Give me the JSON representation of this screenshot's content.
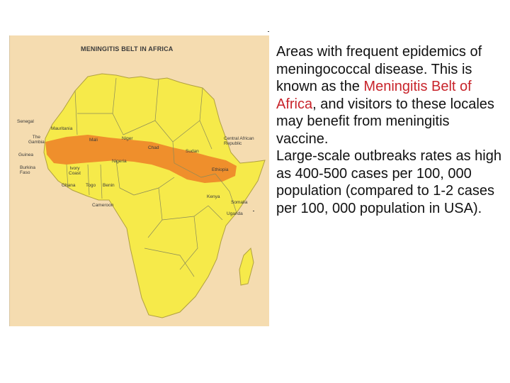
{
  "map": {
    "title": "MENINGITIS BELT IN AFRICA",
    "labels": {
      "senegal": "Senegal",
      "the_gambia": "The\nGambia",
      "guinea": "Guinea",
      "burkina_faso": "Burkina\nFaso",
      "mauritania": "Mauritania",
      "mali": "Mali",
      "niger": "Niger",
      "chad": "Chad",
      "sudan": "Sudan",
      "nigeria": "Nigeria",
      "ivory_coast": "Ivory\nCoast",
      "ghana": "Ghana",
      "togo": "Togo",
      "benin": "Benin",
      "cameroon": "Cameroon",
      "central_african_republic": "Central African\nRepublic",
      "ethiopia": "Ethiopia",
      "kenya": "Kenya",
      "somalia": "Somalia",
      "uganda": "Uganda"
    },
    "colors": {
      "background": "#f5dcb0",
      "land": "#f6ea4a",
      "belt": "#ee8a2a",
      "border": "#8a8a5a"
    }
  },
  "text": {
    "paragraph1_before": "Areas with frequent epidemics of meningococcal disease. This is known as the ",
    "paragraph1_highlight": "Meningitis Belt of Africa",
    "paragraph1_after": ", and visitors to these locales may benefit from meningitis vaccine.",
    "paragraph2": "Large-scale outbreaks rates as high as 400-500 cases per 100, 000 population (compared to 1-2 cases per 100, 000 population in USA).",
    "highlight_color": "#c8242b"
  }
}
